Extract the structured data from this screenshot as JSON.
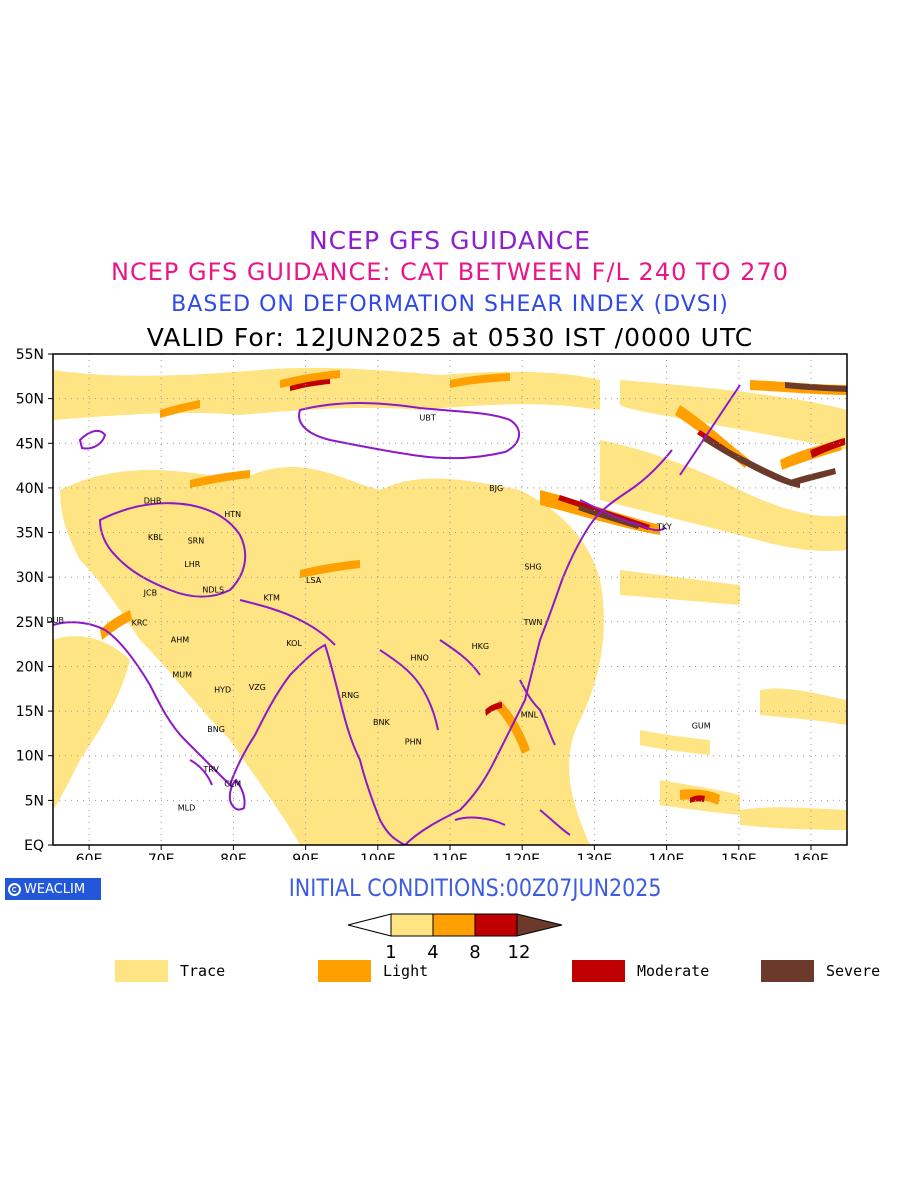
{
  "titles": {
    "line1": "NCEP GFS GUIDANCE",
    "line2": "NCEP GFS GUIDANCE: CAT BETWEEN F/L 240 TO 270",
    "line3": "BASED ON DEFORMATION SHEAR INDEX (DVSI)",
    "line4": "VALID For: 12JUN2025 at 0530 IST /0000 UTC"
  },
  "map": {
    "lon_range": [
      55,
      165
    ],
    "lat_range": [
      0,
      55
    ],
    "lon_ticks": [
      "60E",
      "70E",
      "80E",
      "90E",
      "100E",
      "110E",
      "120E",
      "130E",
      "140E",
      "150E",
      "160E"
    ],
    "lat_ticks": [
      "EQ",
      "5N",
      "10N",
      "15N",
      "20N",
      "25N",
      "30N",
      "35N",
      "40N",
      "45N",
      "50N",
      "55N"
    ],
    "grid": "dotted",
    "border_color": "#8e18c8",
    "cities": [
      {
        "name": "UBT",
        "lon": 106.9,
        "lat": 47.9
      },
      {
        "name": "BJG",
        "lon": 116.4,
        "lat": 40.0
      },
      {
        "name": "DHB",
        "lon": 68.8,
        "lat": 38.6
      },
      {
        "name": "HTN",
        "lon": 79.9,
        "lat": 37.1
      },
      {
        "name": "KBL",
        "lon": 69.2,
        "lat": 34.5
      },
      {
        "name": "SRN",
        "lon": 74.8,
        "lat": 34.1
      },
      {
        "name": "LHR",
        "lon": 74.3,
        "lat": 31.5
      },
      {
        "name": "SHG",
        "lon": 121.5,
        "lat": 31.2
      },
      {
        "name": "TKY",
        "lon": 139.7,
        "lat": 35.7
      },
      {
        "name": "LSA",
        "lon": 91.1,
        "lat": 29.7
      },
      {
        "name": "JCB",
        "lon": 68.5,
        "lat": 28.3
      },
      {
        "name": "NDLS",
        "lon": 77.2,
        "lat": 28.6
      },
      {
        "name": "KTM",
        "lon": 85.3,
        "lat": 27.7
      },
      {
        "name": "DUB",
        "lon": 55.3,
        "lat": 25.2
      },
      {
        "name": "KRC",
        "lon": 67.0,
        "lat": 24.9
      },
      {
        "name": "TWN",
        "lon": 121.5,
        "lat": 25.0
      },
      {
        "name": "AHM",
        "lon": 72.6,
        "lat": 23.0
      },
      {
        "name": "KOL",
        "lon": 88.4,
        "lat": 22.6
      },
      {
        "name": "HKG",
        "lon": 114.2,
        "lat": 22.3
      },
      {
        "name": "HNO",
        "lon": 105.8,
        "lat": 21.0
      },
      {
        "name": "MUM",
        "lon": 72.9,
        "lat": 19.1
      },
      {
        "name": "HYD",
        "lon": 78.5,
        "lat": 17.4
      },
      {
        "name": "VZG",
        "lon": 83.3,
        "lat": 17.7
      },
      {
        "name": "RNG",
        "lon": 96.2,
        "lat": 16.8
      },
      {
        "name": "MNL",
        "lon": 121.0,
        "lat": 14.6
      },
      {
        "name": "BNK",
        "lon": 100.5,
        "lat": 13.8
      },
      {
        "name": "GUM",
        "lon": 144.8,
        "lat": 13.4
      },
      {
        "name": "BNG",
        "lon": 77.6,
        "lat": 13.0
      },
      {
        "name": "PHN",
        "lon": 104.9,
        "lat": 11.6
      },
      {
        "name": "TRV",
        "lon": 76.9,
        "lat": 8.5
      },
      {
        "name": "CLM",
        "lon": 79.9,
        "lat": 6.9
      },
      {
        "name": "MLD",
        "lon": 73.5,
        "lat": 4.2
      }
    ]
  },
  "footer": {
    "logo": "WEACLIM",
    "initial_conditions": "INITIAL CONDITIONS:00Z07JUN2025"
  },
  "colorbar": {
    "levels": [
      "1",
      "4",
      "8",
      "12"
    ],
    "colors": [
      "#ffffff",
      "#ffe484",
      "#ffa000",
      "#c00000",
      "#6b3a2a"
    ]
  },
  "legend": [
    {
      "label": "Trace",
      "color": "#ffe484"
    },
    {
      "label": "Light",
      "color": "#ffa000"
    },
    {
      "label": "Moderate",
      "color": "#c00000"
    },
    {
      "label": "Severe",
      "color": "#6b3a2a"
    }
  ]
}
